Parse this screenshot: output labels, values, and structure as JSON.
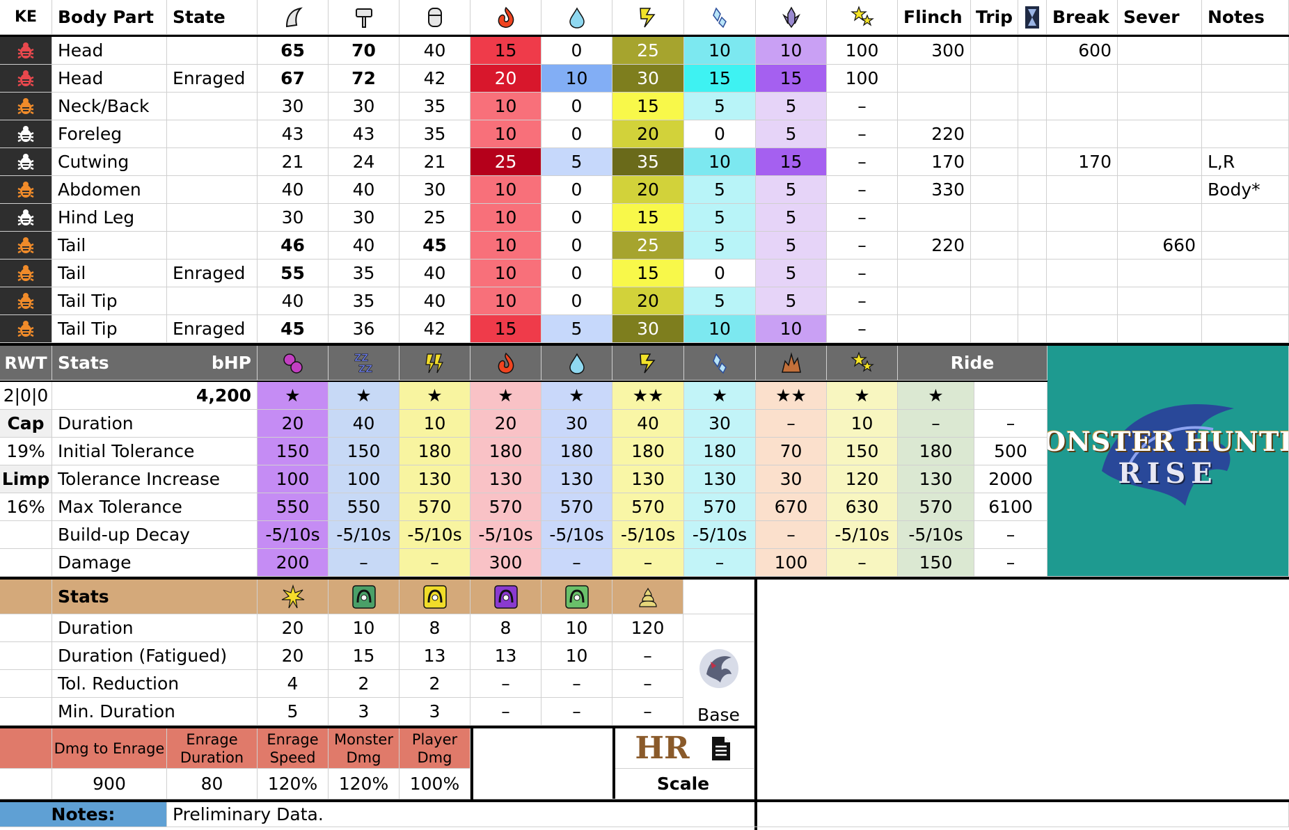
{
  "hitzones": {
    "headers": {
      "ke": "KE",
      "part": "Body Part",
      "state": "State",
      "flinch": "Flinch",
      "trip": "Trip",
      "break": "Break",
      "sever": "Sever",
      "notes": "Notes"
    },
    "rows": [
      {
        "ke_color": "#e8484d",
        "part": "Head",
        "state": "",
        "cut": "65",
        "impact": "70",
        "shot": "40",
        "fire": "15",
        "water": "0",
        "thunder": "25",
        "ice": "10",
        "dragon": "10",
        "stun": "100",
        "flinch": "300",
        "trip": "",
        "break": "600",
        "sever": "",
        "notes": ""
      },
      {
        "ke_color": "#e8484d",
        "part": "Head",
        "state": "Enraged",
        "cut": "67",
        "impact": "72",
        "shot": "42",
        "fire": "20",
        "water": "10",
        "thunder": "30",
        "ice": "15",
        "dragon": "15",
        "stun": "100",
        "flinch": "",
        "trip": "",
        "break": "",
        "sever": "",
        "notes": ""
      },
      {
        "ke_color": "#f08b2a",
        "part": "Neck/Back",
        "state": "",
        "cut": "30",
        "impact": "30",
        "shot": "35",
        "fire": "10",
        "water": "0",
        "thunder": "15",
        "ice": "5",
        "dragon": "5",
        "stun": "–",
        "flinch": "",
        "trip": "",
        "break": "",
        "sever": "",
        "notes": ""
      },
      {
        "ke_color": "#ffffff",
        "part": "Foreleg",
        "state": "",
        "cut": "43",
        "impact": "43",
        "shot": "35",
        "fire": "10",
        "water": "0",
        "thunder": "20",
        "ice": "0",
        "dragon": "5",
        "stun": "–",
        "flinch": "220",
        "trip": "",
        "break": "",
        "sever": "",
        "notes": ""
      },
      {
        "ke_color": "#ffffff",
        "part": "Cutwing",
        "state": "",
        "cut": "21",
        "impact": "24",
        "shot": "21",
        "fire": "25",
        "water": "5",
        "thunder": "35",
        "ice": "10",
        "dragon": "15",
        "stun": "–",
        "flinch": "170",
        "trip": "",
        "break": "170",
        "sever": "",
        "notes": "L,R"
      },
      {
        "ke_color": "#f08b2a",
        "part": "Abdomen",
        "state": "",
        "cut": "40",
        "impact": "40",
        "shot": "30",
        "fire": "10",
        "water": "0",
        "thunder": "20",
        "ice": "5",
        "dragon": "5",
        "stun": "–",
        "flinch": "330",
        "trip": "",
        "break": "",
        "sever": "",
        "notes": "Body*"
      },
      {
        "ke_color": "#ffffff",
        "part": "Hind Leg",
        "state": "",
        "cut": "30",
        "impact": "30",
        "shot": "25",
        "fire": "10",
        "water": "0",
        "thunder": "15",
        "ice": "5",
        "dragon": "5",
        "stun": "–",
        "flinch": "",
        "trip": "",
        "break": "",
        "sever": "",
        "notes": ""
      },
      {
        "ke_color": "#f08b2a",
        "part": "Tail",
        "state": "",
        "cut": "46",
        "impact": "40",
        "shot": "45",
        "fire": "10",
        "water": "0",
        "thunder": "25",
        "ice": "5",
        "dragon": "5",
        "stun": "–",
        "flinch": "220",
        "trip": "",
        "break": "",
        "sever": "660",
        "notes": ""
      },
      {
        "ke_color": "#f08b2a",
        "part": "Tail",
        "state": "Enraged",
        "cut": "55",
        "impact": "35",
        "shot": "40",
        "fire": "10",
        "water": "0",
        "thunder": "15",
        "ice": "0",
        "dragon": "5",
        "stun": "–",
        "flinch": "",
        "trip": "",
        "break": "",
        "sever": "",
        "notes": ""
      },
      {
        "ke_color": "#f08b2a",
        "part": "Tail Tip",
        "state": "",
        "cut": "40",
        "impact": "35",
        "shot": "40",
        "fire": "10",
        "water": "0",
        "thunder": "20",
        "ice": "5",
        "dragon": "5",
        "stun": "–",
        "flinch": "",
        "trip": "",
        "break": "",
        "sever": "",
        "notes": ""
      },
      {
        "ke_color": "#f08b2a",
        "part": "Tail Tip",
        "state": "Enraged",
        "cut": "45",
        "impact": "36",
        "shot": "42",
        "fire": "15",
        "water": "5",
        "thunder": "30",
        "ice": "10",
        "dragon": "10",
        "stun": "–",
        "flinch": "",
        "trip": "",
        "break": "",
        "sever": "",
        "notes": ""
      }
    ]
  },
  "status": {
    "headers": {
      "rwt": "RWT",
      "stats": "Stats",
      "bhp": "bHP",
      "ride": "Ride"
    },
    "left_values": [
      "2|0|0",
      "Cap",
      "19%",
      "Limp",
      "16%",
      "",
      ""
    ],
    "bhp_value": "4,200",
    "row_labels": [
      "Duration",
      "Initial Tolerance",
      "Tolerance Increase",
      "Max Tolerance",
      "Build-up Decay",
      "Damage"
    ],
    "cols": [
      {
        "name": "poison",
        "stars": "★",
        "vals": [
          "20",
          "150",
          "100",
          "550",
          "-5/10s",
          "200"
        ]
      },
      {
        "name": "sleep",
        "stars": "★",
        "vals": [
          "40",
          "150",
          "100",
          "550",
          "-5/10s",
          "–"
        ]
      },
      {
        "name": "paralysis",
        "stars": "★",
        "vals": [
          "10",
          "180",
          "130",
          "570",
          "-5/10s",
          "–"
        ]
      },
      {
        "name": "fireblight",
        "stars": "★",
        "vals": [
          "20",
          "180",
          "130",
          "570",
          "-5/10s",
          "300"
        ]
      },
      {
        "name": "waterblight",
        "stars": "★",
        "vals": [
          "30",
          "180",
          "130",
          "570",
          "-5/10s",
          "–"
        ]
      },
      {
        "name": "thunderblight",
        "stars": "★★",
        "vals": [
          "40",
          "180",
          "130",
          "570",
          "-5/10s",
          "–"
        ]
      },
      {
        "name": "iceblight",
        "stars": "★",
        "vals": [
          "30",
          "180",
          "130",
          "570",
          "-5/10s",
          "–"
        ]
      },
      {
        "name": "blast",
        "stars": "★★",
        "vals": [
          "–",
          "70",
          "30",
          "670",
          "–",
          "100"
        ]
      },
      {
        "name": "stun",
        "stars": "★",
        "vals": [
          "10",
          "150",
          "120",
          "630",
          "-5/10s",
          "–"
        ]
      },
      {
        "name": "exhaust",
        "stars": "★",
        "vals": [
          "–",
          "180",
          "130",
          "570",
          "-5/10s",
          "150"
        ]
      },
      {
        "name": "ride",
        "stars": "",
        "vals": [
          "–",
          "500",
          "2000",
          "6100",
          "–",
          "–"
        ]
      }
    ]
  },
  "logo": {
    "line1": "MONSTER HUNTER",
    "line2": "RISE"
  },
  "traps": {
    "header": "Stats",
    "row_labels": [
      "Duration",
      "Duration (Fatigued)",
      "Tol. Reduction",
      "Min. Duration"
    ],
    "cols": [
      {
        "name": "flash",
        "vals": [
          "20",
          "20",
          "4",
          "5"
        ]
      },
      {
        "name": "pitfall-trap",
        "vals": [
          "10",
          "15",
          "2",
          "3"
        ]
      },
      {
        "name": "shock-trap",
        "vals": [
          "8",
          "13",
          "2",
          "3"
        ]
      },
      {
        "name": "tranq",
        "vals": [
          "8",
          "13",
          "–",
          "–"
        ]
      },
      {
        "name": "net",
        "vals": [
          "10",
          "10",
          "–",
          "–"
        ]
      },
      {
        "name": "dung",
        "vals": [
          "120",
          "–",
          "–",
          "–"
        ]
      }
    ],
    "base_label": "Base"
  },
  "enrage": {
    "headers": [
      "Dmg to Enrage",
      "Enrage Duration",
      "Enrage Speed",
      "Monster Dmg",
      "Player Dmg"
    ],
    "values": [
      "900",
      "80",
      "120%",
      "120%",
      "100%"
    ],
    "hr_label": "HR",
    "scale_label": "Scale"
  },
  "notes": {
    "label": "Notes:",
    "text": "Preliminary Data."
  }
}
